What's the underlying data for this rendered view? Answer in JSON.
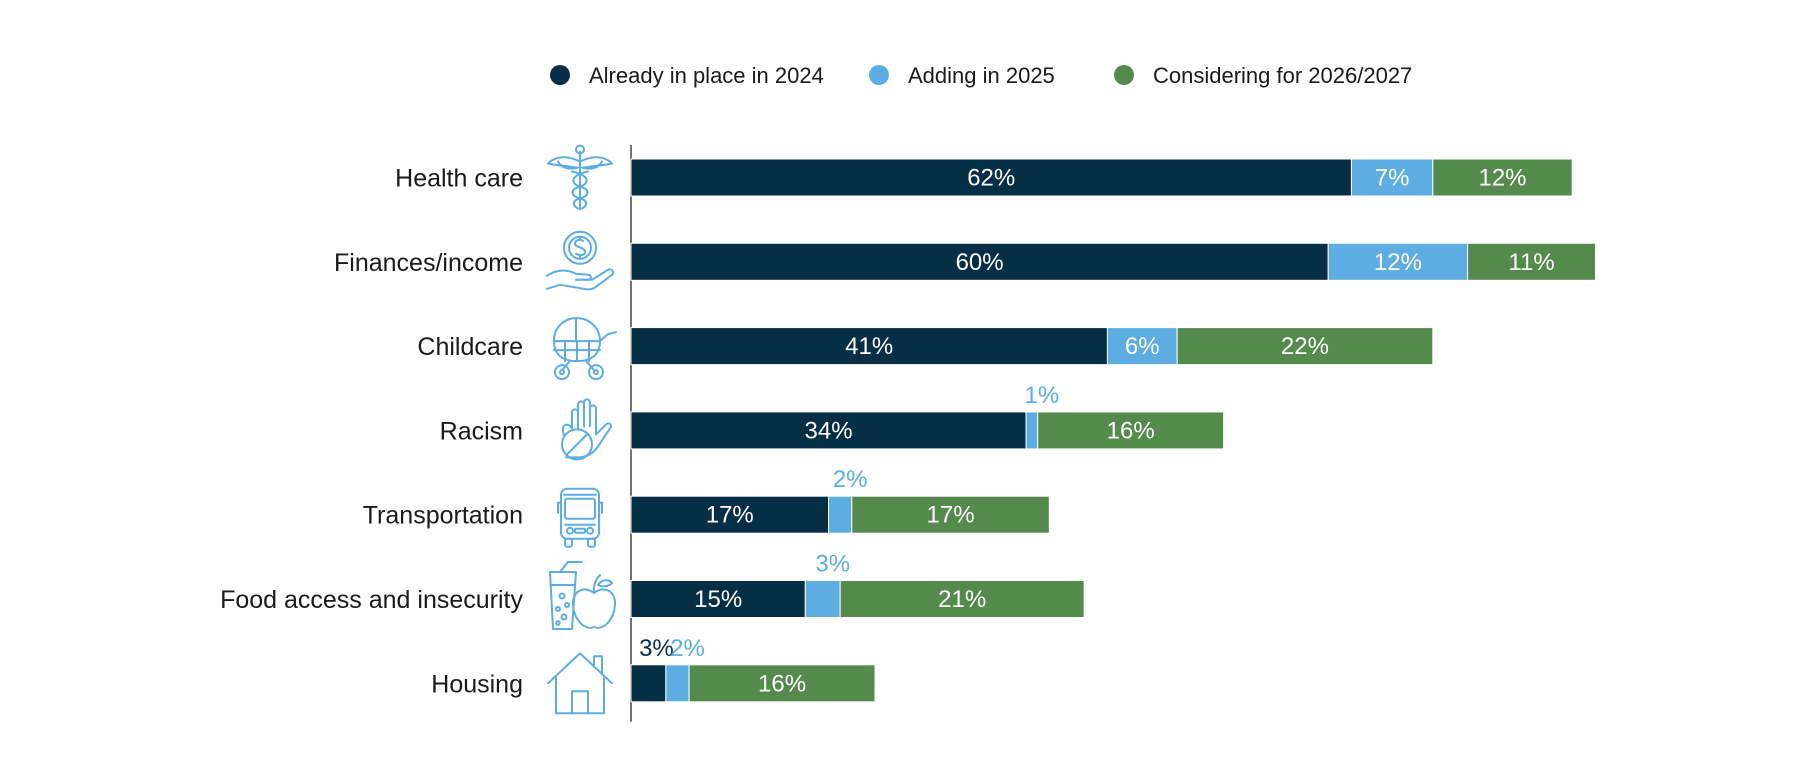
{
  "chart_data": {
    "type": "bar",
    "orientation": "horizontal",
    "stacked": true,
    "title": "",
    "xlabel": "",
    "ylabel": "",
    "xlim": [
      0,
      100
    ],
    "grid": false,
    "legend_position": "top",
    "value_suffix": "%",
    "categories": [
      {
        "label": "Health care",
        "icon": "caduceus-icon"
      },
      {
        "label": "Finances/income",
        "icon": "hand-coin-icon"
      },
      {
        "label": "Childcare",
        "icon": "baby-stroller-icon"
      },
      {
        "label": "Racism",
        "icon": "stop-hand-icon"
      },
      {
        "label": "Transportation",
        "icon": "bus-icon"
      },
      {
        "label": "Food access and insecurity",
        "icon": "glass-apple-icon"
      },
      {
        "label": "Housing",
        "icon": "house-icon"
      }
    ],
    "series": [
      {
        "name": "Already in place in 2024",
        "color": "#062E45",
        "values": [
          62,
          60,
          41,
          34,
          17,
          15,
          3
        ]
      },
      {
        "name": "Adding in 2025",
        "color": "#5DADE2",
        "values": [
          7,
          12,
          6,
          1,
          2,
          3,
          2
        ]
      },
      {
        "name": "Considering for 2026/2027",
        "color": "#548B4C",
        "values": [
          12,
          11,
          22,
          16,
          17,
          21,
          16
        ]
      }
    ],
    "icon_color": "#5DADE2"
  }
}
